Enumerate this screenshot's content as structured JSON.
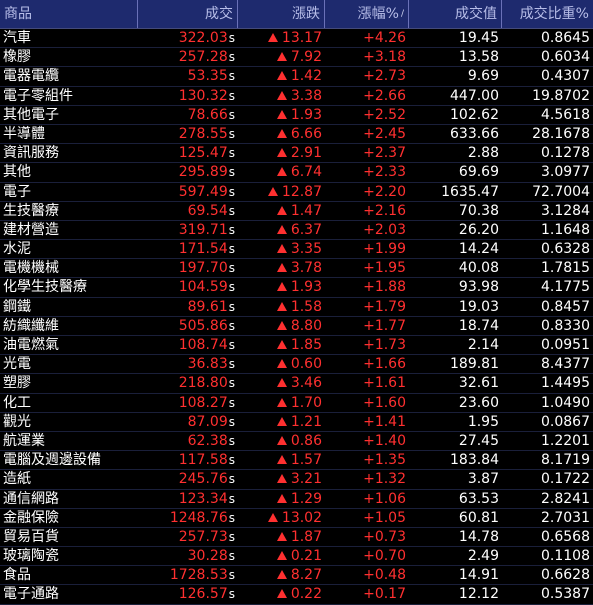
{
  "colors": {
    "header_bg": "#1e2a6e",
    "header_text": "#b7bde8",
    "up": "#ff3030",
    "text": "#ffffff",
    "background": "#000000"
  },
  "header": {
    "name": "商品",
    "price": "成交",
    "change": "漲跌",
    "pct": "漲幅%",
    "pct_sort": "/",
    "volume": "成交值",
    "ratio": "成交比重%"
  },
  "rows": [
    {
      "name": "汽車",
      "price": "322.03",
      "flag": "s",
      "change": "13.17",
      "pct": "+4.26",
      "volume": "19.45",
      "ratio": "0.8645"
    },
    {
      "name": "橡膠",
      "price": "257.28",
      "flag": "s",
      "change": "7.92",
      "pct": "+3.18",
      "volume": "13.58",
      "ratio": "0.6034"
    },
    {
      "name": "電器電纜",
      "price": "53.35",
      "flag": "s",
      "change": "1.42",
      "pct": "+2.73",
      "volume": "9.69",
      "ratio": "0.4307"
    },
    {
      "name": "電子零組件",
      "price": "130.32",
      "flag": "s",
      "change": "3.38",
      "pct": "+2.66",
      "volume": "447.00",
      "ratio": "19.8702"
    },
    {
      "name": "其他電子",
      "price": "78.66",
      "flag": "s",
      "change": "1.93",
      "pct": "+2.52",
      "volume": "102.62",
      "ratio": "4.5618"
    },
    {
      "name": "半導體",
      "price": "278.55",
      "flag": "s",
      "change": "6.66",
      "pct": "+2.45",
      "volume": "633.66",
      "ratio": "28.1678"
    },
    {
      "name": "資訊服務",
      "price": "125.47",
      "flag": "s",
      "change": "2.91",
      "pct": "+2.37",
      "volume": "2.88",
      "ratio": "0.1278"
    },
    {
      "name": "其他",
      "price": "295.89",
      "flag": "s",
      "change": "6.74",
      "pct": "+2.33",
      "volume": "69.69",
      "ratio": "3.0977"
    },
    {
      "name": "電子",
      "price": "597.49",
      "flag": "s",
      "change": "12.87",
      "pct": "+2.20",
      "volume": "1635.47",
      "ratio": "72.7004"
    },
    {
      "name": "生技醫療",
      "price": "69.54",
      "flag": "s",
      "change": "1.47",
      "pct": "+2.16",
      "volume": "70.38",
      "ratio": "3.1284"
    },
    {
      "name": "建材營造",
      "price": "319.71",
      "flag": "s",
      "change": "6.37",
      "pct": "+2.03",
      "volume": "26.20",
      "ratio": "1.1648"
    },
    {
      "name": "水泥",
      "price": "171.54",
      "flag": "s",
      "change": "3.35",
      "pct": "+1.99",
      "volume": "14.24",
      "ratio": "0.6328"
    },
    {
      "name": "電機機械",
      "price": "197.70",
      "flag": "s",
      "change": "3.78",
      "pct": "+1.95",
      "volume": "40.08",
      "ratio": "1.7815"
    },
    {
      "name": "化學生技醫療",
      "price": "104.59",
      "flag": "s",
      "change": "1.93",
      "pct": "+1.88",
      "volume": "93.98",
      "ratio": "4.1775"
    },
    {
      "name": "鋼鐵",
      "price": "89.61",
      "flag": "s",
      "change": "1.58",
      "pct": "+1.79",
      "volume": "19.03",
      "ratio": "0.8457"
    },
    {
      "name": "紡織纖維",
      "price": "505.86",
      "flag": "s",
      "change": "8.80",
      "pct": "+1.77",
      "volume": "18.74",
      "ratio": "0.8330"
    },
    {
      "name": "油電燃氣",
      "price": "108.74",
      "flag": "s",
      "change": "1.85",
      "pct": "+1.73",
      "volume": "2.14",
      "ratio": "0.0951"
    },
    {
      "name": "光電",
      "price": "36.83",
      "flag": "s",
      "change": "0.60",
      "pct": "+1.66",
      "volume": "189.81",
      "ratio": "8.4377"
    },
    {
      "name": "塑膠",
      "price": "218.80",
      "flag": "s",
      "change": "3.46",
      "pct": "+1.61",
      "volume": "32.61",
      "ratio": "1.4495"
    },
    {
      "name": "化工",
      "price": "108.27",
      "flag": "s",
      "change": "1.70",
      "pct": "+1.60",
      "volume": "23.60",
      "ratio": "1.0490"
    },
    {
      "name": "觀光",
      "price": "87.09",
      "flag": "s",
      "change": "1.21",
      "pct": "+1.41",
      "volume": "1.95",
      "ratio": "0.0867"
    },
    {
      "name": "航運業",
      "price": "62.38",
      "flag": "s",
      "change": "0.86",
      "pct": "+1.40",
      "volume": "27.45",
      "ratio": "1.2201"
    },
    {
      "name": "電腦及週邊設備",
      "price": "117.58",
      "flag": "s",
      "change": "1.57",
      "pct": "+1.35",
      "volume": "183.84",
      "ratio": "8.1719"
    },
    {
      "name": "造紙",
      "price": "245.76",
      "flag": "s",
      "change": "3.21",
      "pct": "+1.32",
      "volume": "3.87",
      "ratio": "0.1722"
    },
    {
      "name": "通信網路",
      "price": "123.34",
      "flag": "s",
      "change": "1.29",
      "pct": "+1.06",
      "volume": "63.53",
      "ratio": "2.8241"
    },
    {
      "name": "金融保險",
      "price": "1248.76",
      "flag": "s",
      "change": "13.02",
      "pct": "+1.05",
      "volume": "60.81",
      "ratio": "2.7031"
    },
    {
      "name": "貿易百貨",
      "price": "257.73",
      "flag": "s",
      "change": "1.87",
      "pct": "+0.73",
      "volume": "14.78",
      "ratio": "0.6568"
    },
    {
      "name": "玻璃陶瓷",
      "price": "30.28",
      "flag": "s",
      "change": "0.21",
      "pct": "+0.70",
      "volume": "2.49",
      "ratio": "0.1108"
    },
    {
      "name": "食品",
      "price": "1728.53",
      "flag": "s",
      "change": "8.27",
      "pct": "+0.48",
      "volume": "14.91",
      "ratio": "0.6628"
    },
    {
      "name": "電子通路",
      "price": "126.57",
      "flag": "s",
      "change": "0.22",
      "pct": "+0.17",
      "volume": "12.12",
      "ratio": "0.5387"
    }
  ]
}
